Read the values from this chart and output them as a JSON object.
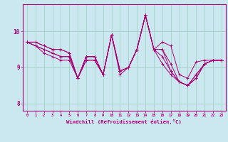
{
  "title": "",
  "xlabel": "Windchill (Refroidissement éolien,°C)",
  "ylabel": "",
  "background_color": "#cbe8f0",
  "line_color": "#aa0077",
  "grid_color": "#99ccbb",
  "xlim": [
    -0.5,
    23.5
  ],
  "ylim": [
    7.8,
    10.75
  ],
  "xticks": [
    0,
    1,
    2,
    3,
    4,
    5,
    6,
    7,
    8,
    9,
    10,
    11,
    12,
    13,
    14,
    15,
    16,
    17,
    18,
    19,
    20,
    21,
    22,
    23
  ],
  "yticks": [
    8,
    9,
    10
  ],
  "series": [
    [
      9.7,
      9.7,
      9.6,
      9.5,
      9.5,
      9.4,
      8.7,
      9.3,
      9.3,
      8.8,
      9.9,
      8.9,
      9.0,
      9.5,
      10.45,
      9.5,
      9.7,
      9.6,
      8.8,
      8.7,
      9.15,
      9.2,
      9.2,
      9.2
    ],
    [
      9.7,
      9.7,
      9.6,
      9.5,
      9.5,
      9.4,
      8.7,
      9.3,
      9.3,
      8.8,
      9.9,
      8.9,
      9.0,
      9.5,
      10.45,
      9.5,
      9.5,
      9.1,
      8.6,
      8.5,
      8.8,
      9.1,
      9.2,
      9.2
    ],
    [
      9.7,
      9.6,
      9.5,
      9.4,
      9.3,
      9.3,
      8.7,
      9.3,
      9.3,
      8.8,
      9.9,
      8.9,
      9.0,
      9.5,
      10.45,
      9.5,
      9.5,
      8.9,
      8.6,
      8.5,
      8.8,
      9.1,
      9.2,
      9.2
    ],
    [
      9.7,
      9.6,
      9.5,
      9.4,
      9.3,
      9.3,
      8.7,
      9.2,
      9.2,
      8.8,
      9.9,
      8.9,
      9.0,
      9.5,
      10.45,
      9.5,
      9.3,
      8.9,
      8.6,
      8.5,
      8.7,
      9.1,
      9.2,
      9.2
    ],
    [
      9.7,
      9.6,
      9.4,
      9.3,
      9.2,
      9.2,
      8.7,
      9.2,
      9.2,
      8.8,
      9.9,
      8.8,
      9.0,
      9.5,
      10.45,
      9.5,
      9.1,
      8.8,
      8.6,
      8.5,
      8.7,
      9.1,
      9.2,
      9.2
    ]
  ]
}
